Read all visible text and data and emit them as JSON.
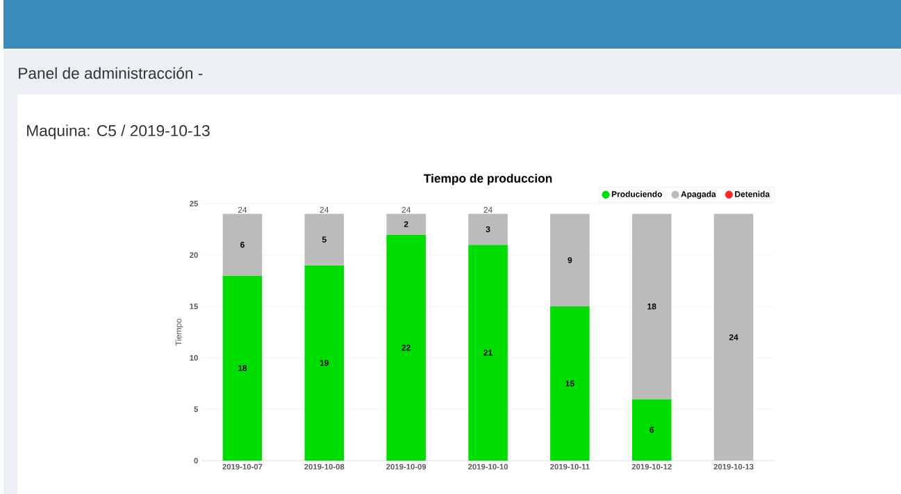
{
  "chart_data": {
    "type": "bar",
    "title": "Tiempo de produccion",
    "ylabel": "Tiempo",
    "annotations": [
      "Panel de administracción -",
      "Maquina: C5 / 2019-10-13"
    ],
    "categories": [
      "2019-10-07",
      "2019-10-08",
      "2019-10-09",
      "2019-10-10",
      "2019-10-11",
      "2019-10-12",
      "2019-10-13"
    ],
    "stacked": true,
    "series": [
      {
        "name": "Produciendo",
        "color": "#00dd00",
        "values": [
          18,
          19,
          22,
          21,
          15,
          6,
          null
        ],
        "value_labels": [
          "18",
          "19",
          "22",
          "21",
          "15",
          "6",
          null
        ]
      },
      {
        "name": "Apagada",
        "color": "#bbbbbb",
        "values": [
          6,
          5,
          2,
          3,
          9,
          18,
          24
        ],
        "value_labels": [
          "6",
          "5",
          "2",
          "3",
          "9",
          "18",
          "24"
        ]
      },
      {
        "name": "Detenida",
        "color": "#ff2a2a",
        "values": [
          null,
          null,
          null,
          null,
          null,
          null,
          null
        ]
      }
    ],
    "totals": [
      "24",
      "24",
      "24",
      "24",
      null,
      null,
      null
    ],
    "ylim": [
      0,
      25
    ],
    "yticks": [
      0,
      5,
      10,
      15,
      20,
      25
    ],
    "grid": "y",
    "legend": "top right"
  }
}
